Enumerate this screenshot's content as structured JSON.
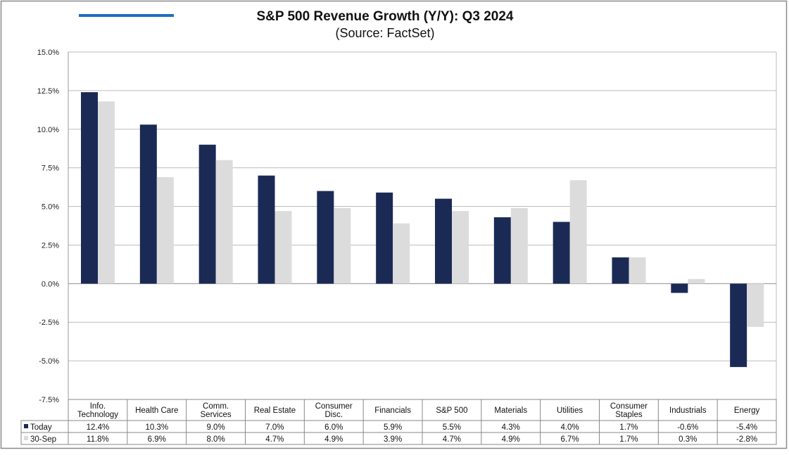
{
  "chart_data": {
    "type": "bar",
    "title": "S&P 500 Revenue Growth (Y/Y): Q3 2024",
    "subtitle": "(Source: FactSet)",
    "xlabel": "",
    "ylabel": "",
    "ylim": [
      -7.5,
      15.0
    ],
    "yticks": [
      "15.0%",
      "12.5%",
      "10.0%",
      "7.5%",
      "5.0%",
      "2.5%",
      "0.0%",
      "-2.5%",
      "-5.0%",
      "-7.5%"
    ],
    "ytick_values": [
      15,
      12.5,
      10,
      7.5,
      5,
      2.5,
      0,
      -2.5,
      -5,
      -7.5
    ],
    "grid": true,
    "legend": "table-bottom",
    "categories": [
      [
        "Info.",
        "Technology"
      ],
      [
        "Health Care"
      ],
      [
        "Comm.",
        "Services"
      ],
      [
        "Real Estate"
      ],
      [
        "Consumer",
        "Disc."
      ],
      [
        "Financials"
      ],
      [
        "S&P 500"
      ],
      [
        "Materials"
      ],
      [
        "Utilities"
      ],
      [
        "Consumer",
        "Staples"
      ],
      [
        "Industrials"
      ],
      [
        "Energy"
      ]
    ],
    "series": [
      {
        "name": "Today",
        "color": "#1b2a55",
        "values": [
          12.4,
          10.3,
          9.0,
          7.0,
          6.0,
          5.9,
          5.5,
          4.3,
          4.0,
          1.7,
          -0.6,
          -5.4
        ],
        "labels": [
          "12.4%",
          "10.3%",
          "9.0%",
          "7.0%",
          "6.0%",
          "5.9%",
          "5.5%",
          "4.3%",
          "4.0%",
          "1.7%",
          "-0.6%",
          "-5.4%"
        ]
      },
      {
        "name": "30-Sep",
        "color": "#dcdcdc",
        "values": [
          11.8,
          6.9,
          8.0,
          4.7,
          4.9,
          3.9,
          4.7,
          4.9,
          6.7,
          1.7,
          0.3,
          -2.8
        ],
        "labels": [
          "11.8%",
          "6.9%",
          "8.0%",
          "4.7%",
          "4.9%",
          "3.9%",
          "4.7%",
          "4.9%",
          "6.7%",
          "1.7%",
          "0.3%",
          "-2.8%"
        ]
      }
    ]
  },
  "accent_color": "#1a6fc0"
}
